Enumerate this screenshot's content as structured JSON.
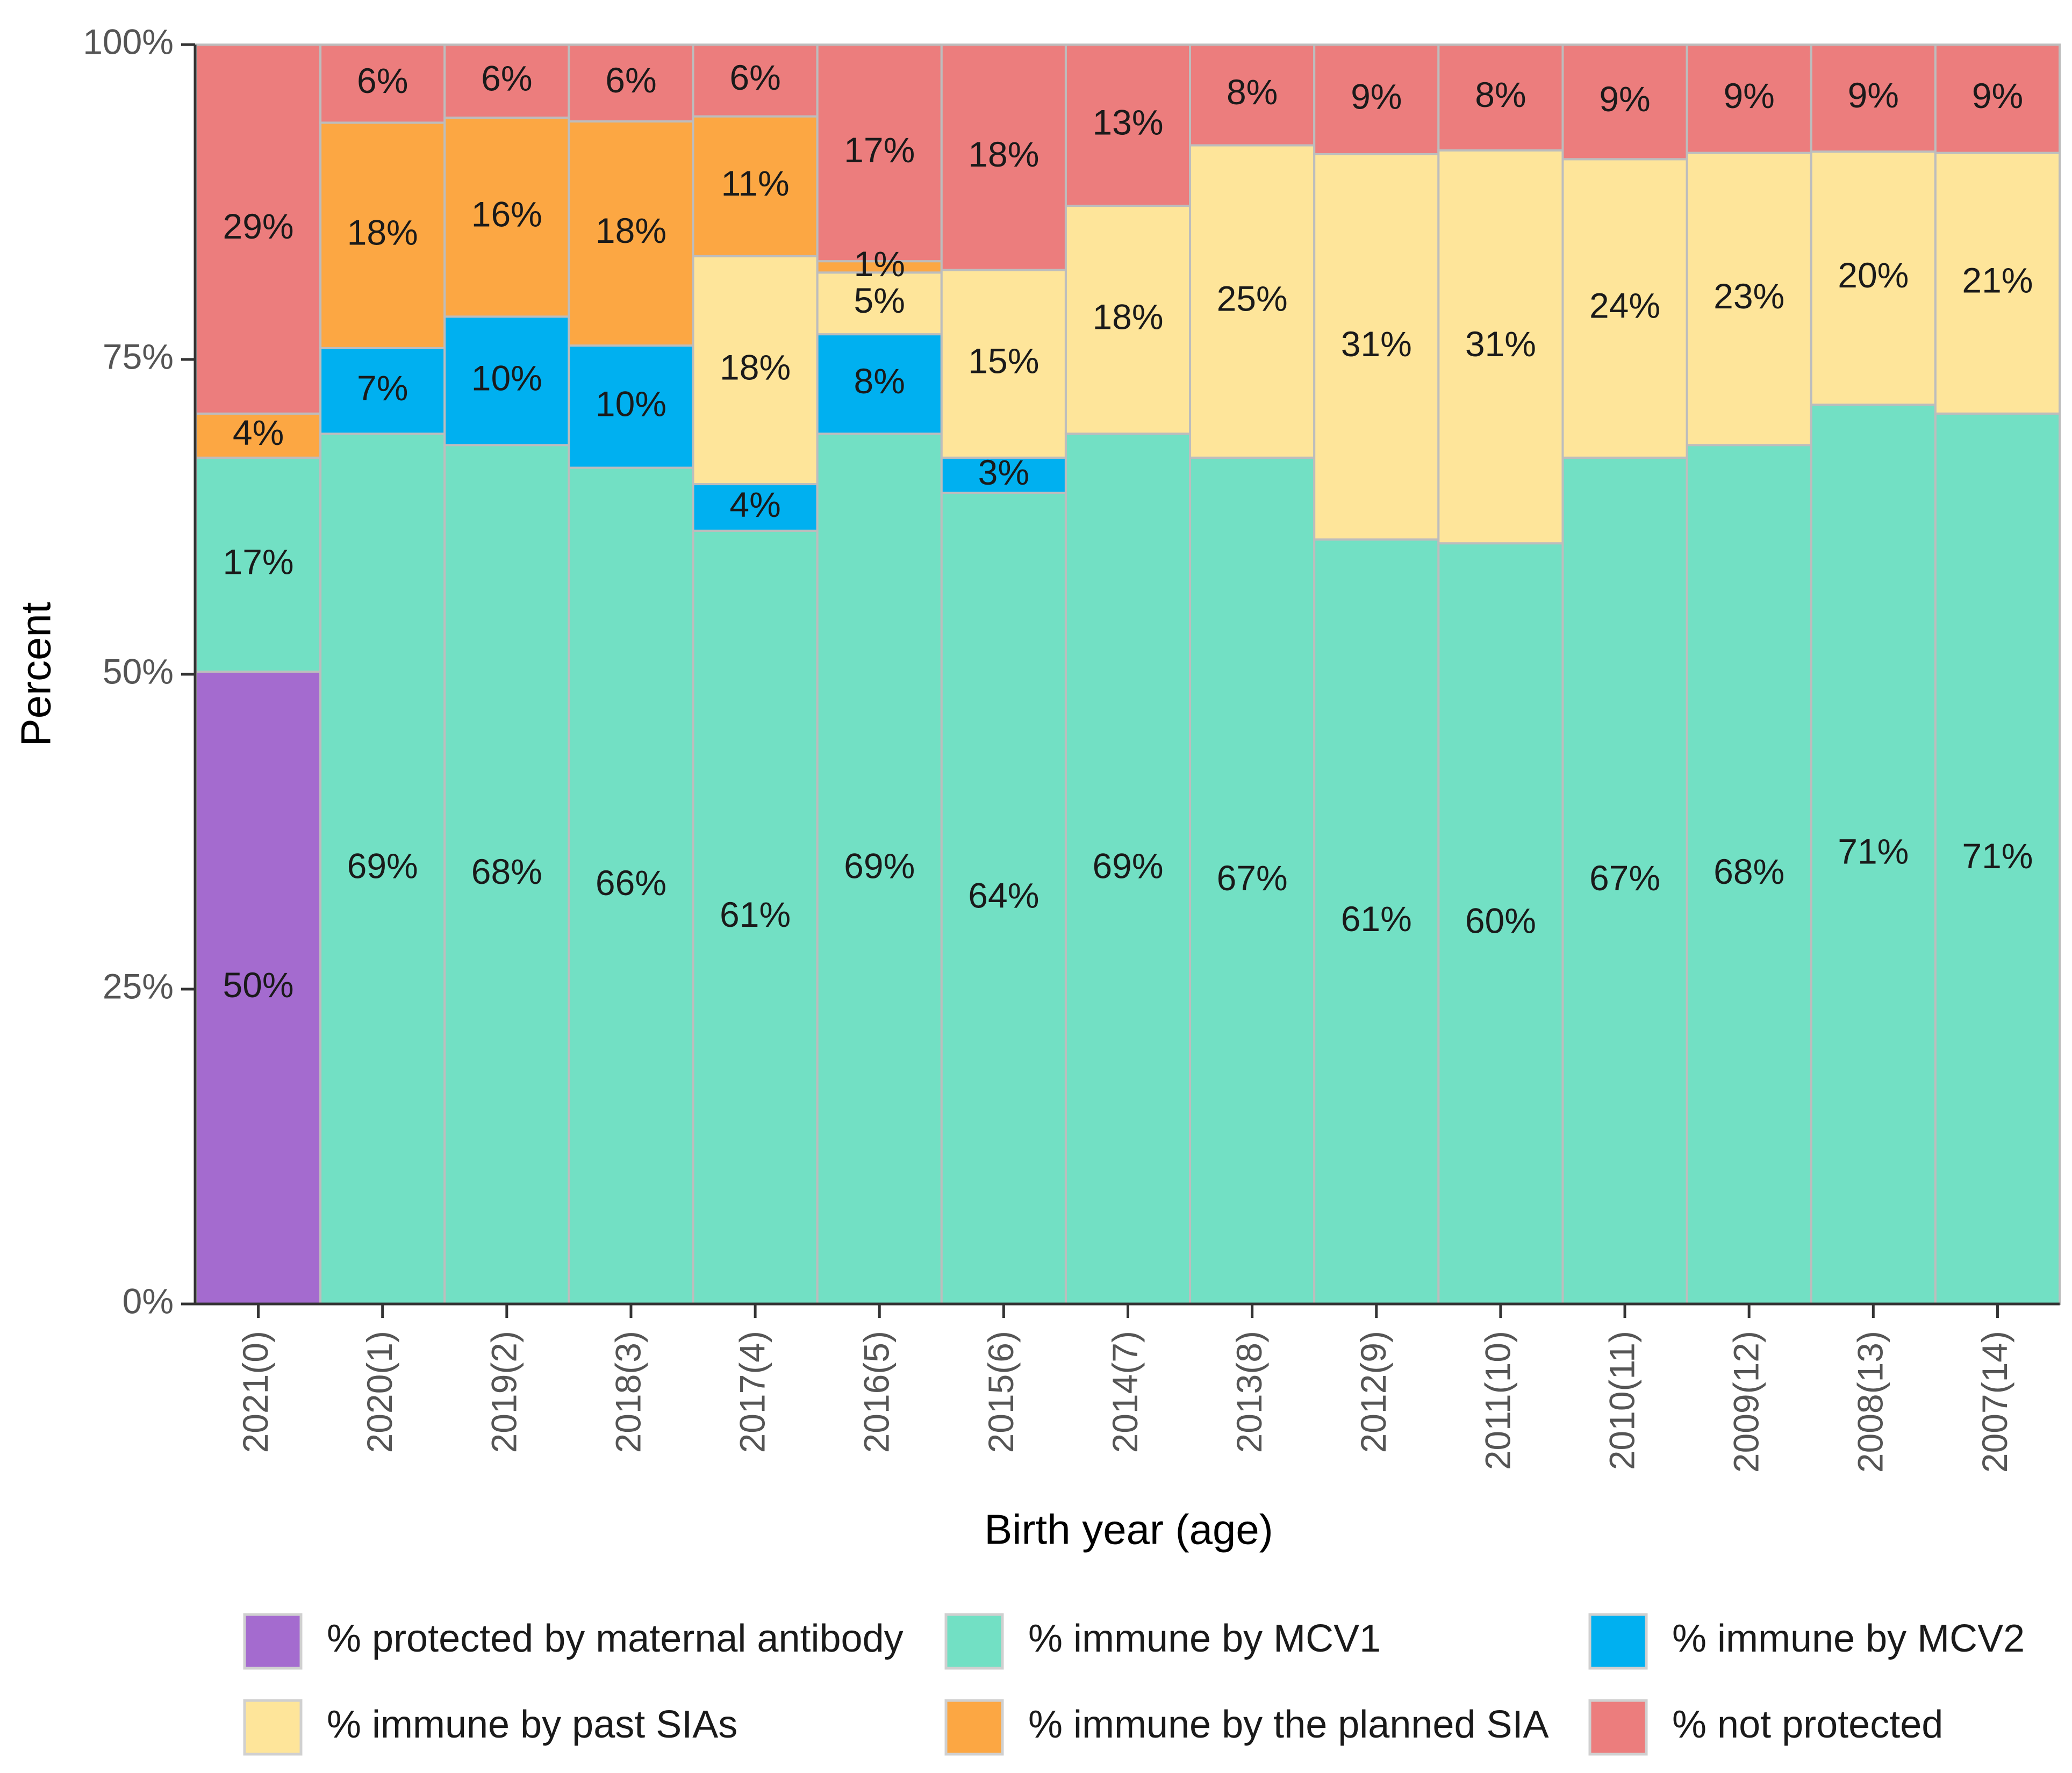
{
  "chart_data": {
    "type": "bar",
    "stacked": true,
    "title": "",
    "xlabel": "Birth year (age)",
    "ylabel": "Percent",
    "ylim": [
      0,
      100
    ],
    "y_ticks": [
      0,
      25,
      50,
      75,
      100
    ],
    "y_tick_labels": [
      "0%",
      "25%",
      "50%",
      "75%",
      "100%"
    ],
    "grid": false,
    "legend_position": "bottom",
    "categories": [
      "2021(0)",
      "2020(1)",
      "2019(2)",
      "2018(3)",
      "2017(4)",
      "2016(5)",
      "2015(6)",
      "2014(7)",
      "2013(8)",
      "2012(9)",
      "2011(10)",
      "2010(11)",
      "2009(12)",
      "2008(13)",
      "2007(14)"
    ],
    "series": [
      {
        "name": "% protected by maternal antibody",
        "color": "#a46bcf",
        "values": [
          50.2,
          0,
          0,
          0,
          0,
          0,
          0,
          0,
          0,
          0,
          0,
          0,
          0,
          0,
          0
        ],
        "labels": [
          "50%",
          "",
          "",
          "",
          "",
          "",
          "",
          "",
          "",
          "",
          "",
          "",
          "",
          "",
          ""
        ]
      },
      {
        "name": "% immune by MCV1",
        "color": "#72e0c4",
        "values": [
          17.0,
          69.1,
          68.2,
          66.4,
          61.4,
          69.1,
          64.4,
          69.1,
          67.2,
          60.7,
          60.4,
          67.2,
          68.2,
          71.4,
          70.7
        ],
        "labels": [
          "17%",
          "69%",
          "68%",
          "66%",
          "61%",
          "69%",
          "64%",
          "69%",
          "67%",
          "61%",
          "60%",
          "67%",
          "68%",
          "71%",
          "71%"
        ]
      },
      {
        "name": "% immune by MCV2",
        "color": "#00b0f0",
        "values": [
          0,
          6.8,
          10.2,
          9.7,
          3.7,
          7.9,
          2.8,
          0,
          0,
          0,
          0,
          0,
          0,
          0,
          0
        ],
        "labels": [
          "",
          "7%",
          "10%",
          "10%",
          "4%",
          "8%",
          "3%",
          "",
          "",
          "",
          "",
          "",
          "",
          "",
          ""
        ]
      },
      {
        "name": "% immune by past SIAs",
        "color": "#fee59a",
        "values": [
          0,
          0,
          0,
          0,
          18.1,
          4.9,
          14.9,
          18.1,
          24.8,
          30.6,
          31.2,
          23.7,
          23.2,
          20.1,
          20.7
        ],
        "labels": [
          "",
          "",
          "",
          "",
          "18%",
          "5%",
          "15%",
          "18%",
          "25%",
          "31%",
          "31%",
          "24%",
          "23%",
          "20%",
          "21%"
        ]
      },
      {
        "name": "% immune by the planned SIA",
        "color": "#fca743",
        "values": [
          3.5,
          17.9,
          15.8,
          17.8,
          11.1,
          0.9,
          0,
          0,
          0,
          0,
          0,
          0,
          0,
          0,
          0
        ],
        "labels": [
          "4%",
          "18%",
          "16%",
          "18%",
          "11%",
          "1%",
          "",
          "",
          "",
          "",
          "",
          "",
          "",
          "",
          ""
        ]
      },
      {
        "name": "% not protected",
        "color": "#ec7d7d",
        "values": [
          29.3,
          6.2,
          5.8,
          6.1,
          5.7,
          17.2,
          17.9,
          12.8,
          8.0,
          8.7,
          8.4,
          9.1,
          8.6,
          8.5,
          8.6
        ],
        "labels": [
          "29%",
          "6%",
          "6%",
          "6%",
          "6%",
          "17%",
          "18%",
          "13%",
          "8%",
          "9%",
          "8%",
          "9%",
          "9%",
          "9%",
          "9%"
        ]
      }
    ]
  }
}
